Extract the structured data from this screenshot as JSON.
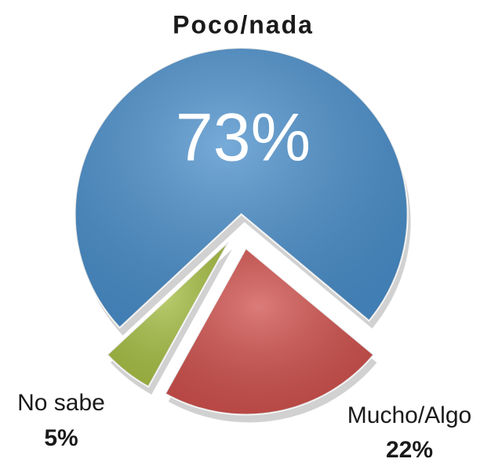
{
  "chart_data": {
    "type": "pie",
    "categories": [
      "Poco/nada",
      "Mucho/Algo",
      "No sabe"
    ],
    "values": [
      73,
      22,
      5
    ],
    "value_labels": [
      "73%",
      "22%",
      "5%"
    ],
    "colors": [
      "#4a8fcb",
      "#d0504c",
      "#a8c045"
    ]
  }
}
